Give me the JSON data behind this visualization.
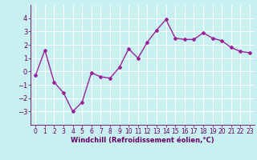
{
  "x": [
    0,
    1,
    2,
    3,
    4,
    5,
    6,
    7,
    8,
    9,
    10,
    11,
    12,
    13,
    14,
    15,
    16,
    17,
    18,
    19,
    20,
    21,
    22,
    23
  ],
  "y": [
    -0.3,
    1.6,
    -0.8,
    -1.6,
    -3.0,
    -2.3,
    -0.1,
    -0.4,
    -0.5,
    0.3,
    1.7,
    1.0,
    2.2,
    3.1,
    3.9,
    2.5,
    2.4,
    2.4,
    2.9,
    2.5,
    2.3,
    1.8,
    1.5,
    1.4
  ],
  "line_color": "#992299",
  "marker": "D",
  "marker_size": 2,
  "bg_color": "#c8f0f0",
  "grid_color": "#ffffff",
  "xlabel": "Windchill (Refroidissement éolien,°C)",
  "xlabel_color": "#660066",
  "tick_color": "#660066",
  "ylim": [
    -4,
    5
  ],
  "xlim": [
    -0.5,
    23.5
  ],
  "yticks": [
    -3,
    -2,
    -1,
    0,
    1,
    2,
    3,
    4
  ],
  "xticks": [
    0,
    1,
    2,
    3,
    4,
    5,
    6,
    7,
    8,
    9,
    10,
    11,
    12,
    13,
    14,
    15,
    16,
    17,
    18,
    19,
    20,
    21,
    22,
    23
  ],
  "line_width": 1.0,
  "tick_fontsize": 5.5,
  "xlabel_fontsize": 6.0
}
